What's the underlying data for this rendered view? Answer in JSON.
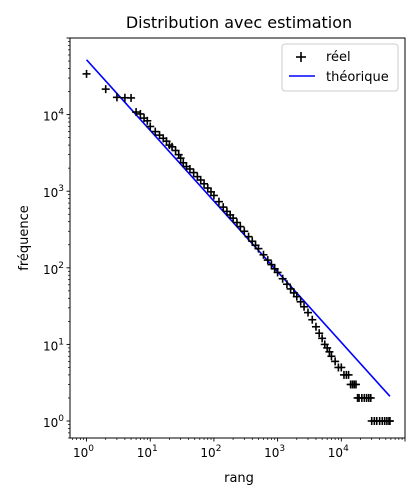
{
  "chart_data": {
    "type": "scatter",
    "title": "Distribution avec estimation",
    "xlabel": "rang",
    "ylabel": "fréquence",
    "xscale": "log",
    "yscale": "log",
    "xlim": [
      0.55,
      100000
    ],
    "ylim": [
      0.6,
      100000
    ],
    "grid": false,
    "legend_position": "top-right",
    "x_ticks": [
      {
        "value": 1,
        "base": "10",
        "exp": "0"
      },
      {
        "value": 10,
        "base": "10",
        "exp": "1"
      },
      {
        "value": 100,
        "base": "10",
        "exp": "2"
      },
      {
        "value": 1000,
        "base": "10",
        "exp": "3"
      },
      {
        "value": 10000,
        "base": "10",
        "exp": "4"
      }
    ],
    "y_ticks": [
      {
        "value": 1,
        "base": "10",
        "exp": "0"
      },
      {
        "value": 10,
        "base": "10",
        "exp": "1"
      },
      {
        "value": 100,
        "base": "10",
        "exp": "2"
      },
      {
        "value": 1000,
        "base": "10",
        "exp": "3"
      },
      {
        "value": 10000,
        "base": "10",
        "exp": "4"
      }
    ],
    "series": [
      {
        "name": "réel",
        "kind": "scatter",
        "marker": "+",
        "color": "#000000",
        "points": [
          [
            1,
            34000
          ],
          [
            2,
            21500
          ],
          [
            3,
            16800
          ],
          [
            4,
            16600
          ],
          [
            5,
            16500
          ],
          [
            6,
            10800
          ],
          [
            7,
            10200
          ],
          [
            8,
            9000
          ],
          [
            9,
            8300
          ],
          [
            10,
            7000
          ],
          [
            12,
            6000
          ],
          [
            14,
            5400
          ],
          [
            16,
            4900
          ],
          [
            18,
            4500
          ],
          [
            20,
            4000
          ],
          [
            22,
            3800
          ],
          [
            25,
            3400
          ],
          [
            28,
            3000
          ],
          [
            30,
            2700
          ],
          [
            33,
            2350
          ],
          [
            37,
            2100
          ],
          [
            42,
            1950
          ],
          [
            48,
            1750
          ],
          [
            55,
            1550
          ],
          [
            62,
            1400
          ],
          [
            70,
            1250
          ],
          [
            80,
            1100
          ],
          [
            90,
            980
          ],
          [
            100,
            880
          ],
          [
            120,
            730
          ],
          [
            140,
            620
          ],
          [
            160,
            545
          ],
          [
            180,
            490
          ],
          [
            200,
            445
          ],
          [
            230,
            390
          ],
          [
            260,
            345
          ],
          [
            300,
            300
          ],
          [
            350,
            255
          ],
          [
            400,
            222
          ],
          [
            450,
            197
          ],
          [
            500,
            178
          ],
          [
            600,
            148
          ],
          [
            700,
            126
          ],
          [
            800,
            110
          ],
          [
            900,
            97
          ],
          [
            1000,
            87
          ],
          [
            1200,
            72
          ],
          [
            1400,
            61
          ],
          [
            1600,
            53
          ],
          [
            1800,
            47
          ],
          [
            2000,
            42
          ],
          [
            2300,
            36
          ],
          [
            2600,
            31
          ],
          [
            3000,
            26
          ],
          [
            3500,
            21
          ],
          [
            4000,
            17
          ],
          [
            4500,
            14
          ],
          [
            5000,
            12
          ],
          [
            5500,
            10
          ],
          [
            6000,
            9
          ],
          [
            6500,
            8
          ],
          [
            7000,
            7
          ],
          [
            8000,
            6
          ],
          [
            9000,
            5
          ],
          [
            10000,
            5
          ],
          [
            11000,
            4
          ],
          [
            12000,
            4
          ],
          [
            13000,
            4
          ],
          [
            14000,
            3
          ],
          [
            15000,
            3
          ],
          [
            16000,
            3
          ],
          [
            17000,
            3
          ],
          [
            18000,
            2
          ],
          [
            19000,
            2
          ],
          [
            21000,
            2
          ],
          [
            23000,
            2
          ],
          [
            25000,
            2
          ],
          [
            27000,
            2
          ],
          [
            29000,
            2
          ],
          [
            30000,
            1
          ],
          [
            33000,
            1
          ],
          [
            36000,
            1
          ],
          [
            40000,
            1
          ],
          [
            44000,
            1
          ],
          [
            48000,
            1
          ],
          [
            52000,
            1
          ],
          [
            56000,
            1
          ],
          [
            58000,
            1
          ]
        ]
      },
      {
        "name": "théorique",
        "kind": "line",
        "color": "#0000ff",
        "points": [
          [
            1,
            52000
          ],
          [
            58000,
            2.1
          ]
        ]
      }
    ]
  }
}
